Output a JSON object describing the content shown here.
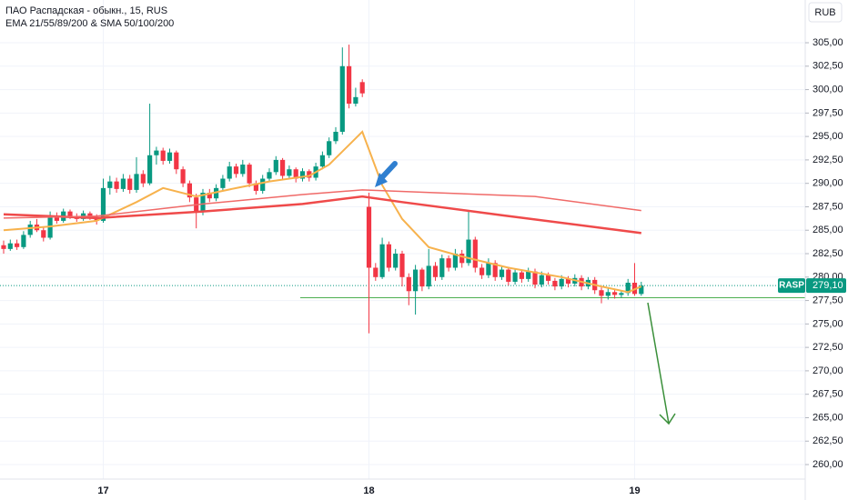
{
  "chart_data": {
    "type": "candlestick",
    "title": "ПАО Распадская - обыкн., 15, RUS",
    "subtitle": "EMA 21/55/89/200 & SMA 50/100/200",
    "currency": "RUB",
    "symbol_tag": "RASP",
    "current_price": 279.1,
    "current_price_label": "279,10",
    "support_level": 277.8,
    "up_color": "#089981",
    "down_color": "#f23645",
    "ylim": [
      258.45,
      309.56
    ],
    "yticks": [
      {
        "value": 260,
        "label": "260,00"
      },
      {
        "value": 262.5,
        "label": "262,50"
      },
      {
        "value": 265,
        "label": "265,00"
      },
      {
        "value": 267.5,
        "label": "267,50"
      },
      {
        "value": 270,
        "label": "270,00"
      },
      {
        "value": 272.5,
        "label": "272,50"
      },
      {
        "value": 275,
        "label": "275,00"
      },
      {
        "value": 277.5,
        "label": "277,50"
      },
      {
        "value": 280,
        "label": "280,00"
      },
      {
        "value": 282.5,
        "label": "282,50"
      },
      {
        "value": 285,
        "label": "285,00"
      },
      {
        "value": 287.5,
        "label": "287,50"
      },
      {
        "value": 290,
        "label": "290,00"
      },
      {
        "value": 292.5,
        "label": "292,50"
      },
      {
        "value": 295,
        "label": "295,00"
      },
      {
        "value": 297.5,
        "label": "297,50"
      },
      {
        "value": 300,
        "label": "300,00"
      },
      {
        "value": 302.5,
        "label": "302,50"
      },
      {
        "value": 305,
        "label": "305,00"
      }
    ],
    "categories": [
      null,
      null,
      null,
      null,
      null,
      null,
      null,
      null,
      null,
      null,
      null,
      null,
      null,
      null,
      null,
      "17",
      null,
      null,
      null,
      null,
      null,
      null,
      null,
      null,
      null,
      null,
      null,
      null,
      null,
      null,
      null,
      null,
      null,
      null,
      null,
      null,
      null,
      null,
      null,
      null,
      null,
      null,
      null,
      null,
      null,
      null,
      null,
      null,
      null,
      null,
      null,
      null,
      null,
      null,
      null,
      "18",
      null,
      null,
      null,
      null,
      null,
      null,
      null,
      null,
      null,
      null,
      null,
      null,
      null,
      null,
      null,
      null,
      null,
      null,
      null,
      null,
      null,
      null,
      null,
      null,
      null,
      null,
      null,
      null,
      null,
      null,
      null,
      null,
      null,
      null,
      null,
      null,
      null,
      null,
      null,
      "19",
      null
    ],
    "ohlc": [
      [
        283.4,
        283.9,
        282.5,
        283.0
      ],
      [
        283.0,
        284.0,
        282.8,
        283.6
      ],
      [
        283.6,
        284.0,
        282.9,
        283.2
      ],
      [
        283.2,
        284.9,
        283.0,
        284.5
      ],
      [
        284.5,
        286.0,
        284.2,
        285.6
      ],
      [
        285.6,
        286.2,
        284.8,
        285.0
      ],
      [
        285.0,
        285.3,
        283.8,
        284.2
      ],
      [
        284.2,
        287.0,
        284.0,
        286.4
      ],
      [
        286.4,
        286.9,
        285.7,
        286.0
      ],
      [
        286.0,
        287.3,
        285.8,
        287.0
      ],
      [
        287.0,
        287.2,
        286.2,
        286.5
      ],
      [
        286.5,
        286.8,
        285.9,
        286.2
      ],
      [
        286.2,
        287.1,
        286.0,
        286.8
      ],
      [
        286.8,
        287.0,
        286.1,
        286.4
      ],
      [
        286.4,
        286.7,
        285.6,
        286.0
      ],
      [
        286.0,
        290.5,
        285.8,
        289.5
      ],
      [
        289.5,
        290.8,
        288.8,
        290.2
      ],
      [
        290.2,
        290.6,
        289.0,
        289.4
      ],
      [
        289.4,
        291.0,
        289.1,
        290.5
      ],
      [
        290.5,
        290.9,
        288.9,
        289.3
      ],
      [
        289.3,
        292.8,
        289.0,
        291.0
      ],
      [
        291.0,
        291.4,
        289.6,
        290.0
      ],
      [
        290.0,
        298.5,
        289.8,
        293.0
      ],
      [
        293.0,
        293.9,
        292.0,
        293.5
      ],
      [
        293.5,
        293.8,
        292.0,
        292.4
      ],
      [
        292.4,
        293.7,
        292.1,
        293.3
      ],
      [
        293.3,
        293.5,
        291.0,
        291.5
      ],
      [
        291.5,
        291.8,
        289.6,
        290.0
      ],
      [
        290.0,
        290.3,
        288.0,
        288.5
      ],
      [
        288.5,
        288.9,
        285.2,
        287.0
      ],
      [
        287.0,
        289.4,
        286.6,
        289.0
      ],
      [
        289.0,
        289.4,
        288.0,
        288.4
      ],
      [
        288.4,
        289.9,
        288.1,
        289.5
      ],
      [
        289.5,
        290.9,
        289.2,
        290.5
      ],
      [
        290.5,
        292.3,
        290.2,
        291.8
      ],
      [
        291.8,
        292.1,
        290.6,
        291.0
      ],
      [
        291.0,
        292.5,
        290.7,
        292.0
      ],
      [
        292.0,
        292.2,
        289.6,
        290.0
      ],
      [
        290.0,
        290.3,
        288.8,
        289.2
      ],
      [
        289.2,
        290.9,
        288.9,
        290.5
      ],
      [
        290.5,
        291.6,
        290.2,
        291.2
      ],
      [
        291.2,
        292.9,
        290.9,
        292.5
      ],
      [
        292.5,
        292.7,
        290.4,
        290.8
      ],
      [
        290.8,
        291.9,
        290.5,
        291.5
      ],
      [
        291.5,
        291.7,
        290.1,
        290.5
      ],
      [
        290.5,
        291.6,
        290.2,
        291.3
      ],
      [
        291.3,
        291.5,
        290.2,
        290.6
      ],
      [
        290.6,
        292.2,
        290.3,
        291.8
      ],
      [
        291.8,
        293.4,
        291.5,
        293.0
      ],
      [
        293.0,
        294.9,
        292.7,
        294.5
      ],
      [
        294.5,
        296.0,
        294.2,
        295.5
      ],
      [
        295.5,
        304.5,
        295.2,
        302.5
      ],
      [
        302.5,
        304.8,
        298.0,
        298.5
      ],
      [
        298.5,
        300.2,
        298.2,
        299.2
      ],
      [
        300.8,
        301.1,
        299.2,
        299.6
      ],
      [
        287.5,
        289.0,
        274.0,
        281.0
      ],
      [
        281.0,
        281.5,
        279.6,
        280.0
      ],
      [
        280.0,
        284.2,
        279.8,
        283.5
      ],
      [
        283.5,
        283.8,
        280.6,
        281.0
      ],
      [
        281.0,
        283.0,
        280.7,
        282.5
      ],
      [
        282.5,
        282.8,
        279.0,
        280.0
      ],
      [
        280.0,
        280.4,
        277.0,
        278.5
      ],
      [
        278.5,
        281.3,
        276.0,
        280.8
      ],
      [
        280.8,
        281.0,
        278.5,
        279.0
      ],
      [
        279.0,
        283.0,
        278.7,
        281.2
      ],
      [
        281.2,
        281.6,
        279.6,
        280.0
      ],
      [
        280.0,
        282.4,
        279.7,
        282.0
      ],
      [
        282.0,
        282.3,
        280.6,
        281.0
      ],
      [
        281.0,
        283.0,
        280.7,
        282.5
      ],
      [
        282.5,
        282.9,
        281.0,
        281.5
      ],
      [
        281.5,
        287.0,
        281.2,
        284.0
      ],
      [
        284.0,
        284.3,
        280.5,
        281.0
      ],
      [
        281.0,
        281.4,
        279.8,
        280.2
      ],
      [
        280.2,
        282.0,
        279.9,
        281.5
      ],
      [
        281.5,
        281.8,
        279.6,
        280.0
      ],
      [
        280.0,
        281.2,
        279.7,
        280.8
      ],
      [
        280.8,
        281.1,
        279.1,
        279.5
      ],
      [
        279.5,
        280.9,
        279.2,
        280.5
      ],
      [
        280.5,
        280.8,
        279.4,
        279.8
      ],
      [
        279.8,
        281.0,
        279.5,
        280.6
      ],
      [
        280.6,
        280.9,
        278.8,
        279.2
      ],
      [
        279.2,
        280.6,
        278.9,
        280.2
      ],
      [
        280.2,
        280.5,
        279.2,
        279.6
      ],
      [
        279.6,
        279.9,
        278.6,
        279.0
      ],
      [
        279.0,
        280.2,
        278.7,
        279.8
      ],
      [
        279.8,
        280.1,
        278.9,
        279.3
      ],
      [
        279.3,
        280.3,
        279.0,
        279.9
      ],
      [
        279.9,
        280.2,
        278.6,
        279.0
      ],
      [
        279.0,
        280.0,
        278.7,
        279.7
      ],
      [
        279.7,
        280.0,
        278.2,
        278.6
      ],
      [
        278.6,
        278.9,
        277.2,
        278.0
      ],
      [
        278.0,
        278.8,
        277.6,
        278.4
      ],
      [
        278.4,
        278.7,
        277.7,
        278.1
      ],
      [
        278.1,
        278.6,
        277.8,
        278.3
      ],
      [
        278.3,
        279.8,
        278.0,
        279.4
      ],
      [
        279.4,
        281.5,
        278.0,
        278.2
      ],
      [
        278.2,
        279.5,
        278.0,
        279.1
      ]
    ],
    "lines": [
      {
        "color": "#f7b24d",
        "width": 2,
        "x": [
          0,
          7,
          14,
          20,
          24,
          29,
          35,
          40,
          46,
          49,
          54,
          57,
          60,
          64,
          69,
          76,
          84,
          90,
          94,
          96
        ],
        "values": [
          285.0,
          285.4,
          286.0,
          288.0,
          289.5,
          288.6,
          289.5,
          290.2,
          290.8,
          292.0,
          295.5,
          289.8,
          286.2,
          283.2,
          282.2,
          281.0,
          280.0,
          279.0,
          278.4,
          279.0
        ]
      },
      {
        "color": "#ef4a4a",
        "width": 2.5,
        "x": [
          0,
          14,
          30,
          45,
          54,
          60,
          75,
          96
        ],
        "values": [
          286.7,
          286.3,
          287.0,
          287.8,
          288.6,
          288.0,
          286.6,
          284.7
        ]
      },
      {
        "color": "#f06a68",
        "width": 1.5,
        "x": [
          0,
          14,
          30,
          45,
          54,
          65,
          80,
          96
        ],
        "values": [
          286.3,
          286.5,
          287.8,
          288.8,
          289.3,
          289.0,
          288.6,
          287.1
        ]
      }
    ]
  }
}
